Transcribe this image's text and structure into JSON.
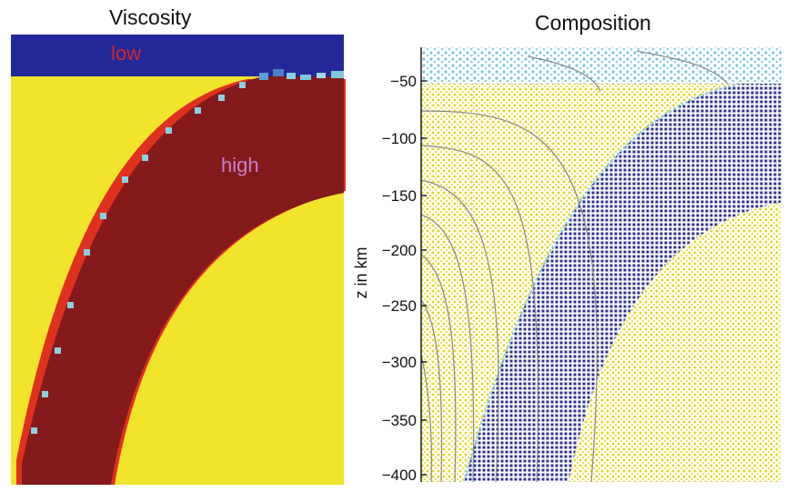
{
  "panels": {
    "viscosity": {
      "title": "Viscosity",
      "label_low": "low",
      "label_high": "high"
    },
    "composition": {
      "title": "Composition",
      "ylabel": "z in km",
      "yticks": [
        "−50",
        "−100",
        "−150",
        "−200",
        "−250",
        "−300",
        "−350",
        "−400"
      ]
    }
  },
  "colors": {
    "low_viscosity": "#23289a",
    "high_viscosity": "#841a1c",
    "background": "#f1e52c",
    "slab_markers": "#2c2f8c",
    "mantle_markers": "#e3d82a",
    "crust_markers": "#7ec6da",
    "edge_cells": "#e03020",
    "isotherms": "#888888"
  }
}
